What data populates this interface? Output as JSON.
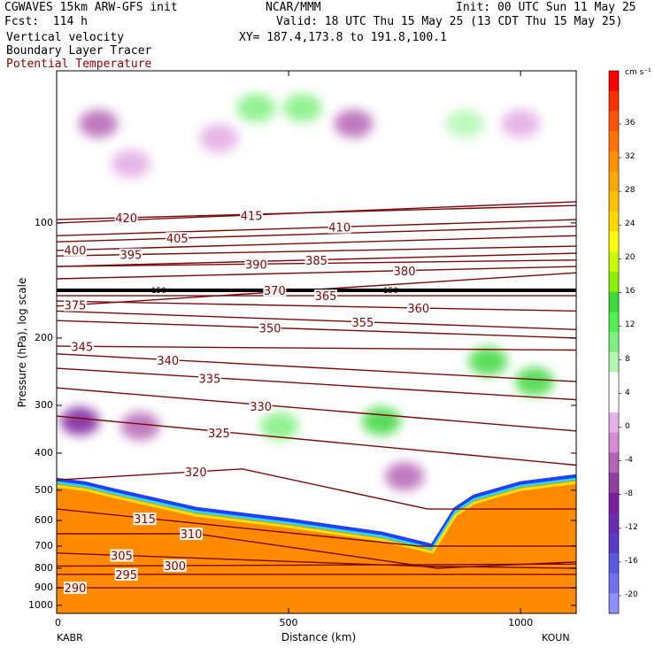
{
  "header": {
    "model": "CGWAVES 15km ARW-GFS init",
    "org": "NCAR/MMM",
    "init": "Init: 00 UTC Sun 11 May 25",
    "fcst": "Fcst:  114 h",
    "valid": "Valid: 18 UTC Thu 15 May 25 (13 CDT Thu 15 May 25)",
    "field1": "Vertical velocity",
    "field2": "Boundary Layer Tracer",
    "field3": "Potential Temperature",
    "xy": "XY= 187.4,173.8 to 191.8,100.1"
  },
  "colors": {
    "theta": "#7a0a0a",
    "tropopause": "#000000",
    "text_red": "#8b0000"
  },
  "chart_data": {
    "type": "heatmap",
    "xlabel": "Distance (km)",
    "ylabel": "Pressure (hPa), log scale",
    "x_ticks": [
      {
        "value": 0,
        "label": "0"
      },
      {
        "value": 500,
        "label": "500"
      },
      {
        "value": 1000,
        "label": "1000"
      }
    ],
    "xlim": [
      0,
      1120
    ],
    "y_scale": "log",
    "ylim": [
      1050,
      40
    ],
    "y_ticks": [
      {
        "value": 100,
        "label": "100"
      },
      {
        "value": 200,
        "label": "200"
      },
      {
        "value": 300,
        "label": "300"
      },
      {
        "value": 400,
        "label": "400"
      },
      {
        "value": 500,
        "label": "500"
      },
      {
        "value": 600,
        "label": "600"
      },
      {
        "value": 700,
        "label": "700"
      },
      {
        "value": 800,
        "label": "800"
      },
      {
        "value": 900,
        "label": "900"
      },
      {
        "value": 1000,
        "label": "1000"
      }
    ],
    "stations": {
      "left": "KABR",
      "right": "KOUN"
    },
    "colorbar": {
      "units": "cm s⁻¹",
      "levels": [
        "36",
        "32",
        "28",
        "24",
        "20",
        "16",
        "12",
        "8",
        "4",
        "0",
        "-4",
        "-8",
        "-12",
        "-16",
        "-20"
      ],
      "colors": [
        "#ff0000",
        "#ff3000",
        "#ff5500",
        "#ff7400",
        "#ff9000",
        "#ffa800",
        "#ffc000",
        "#ffd800",
        "#ffff00",
        "#c8ff00",
        "#8af000",
        "#3cd83c",
        "#50f050",
        "#80f080",
        "#b4f8b4",
        "#ffffff",
        "#ffffff",
        "#eab2ea",
        "#d48cd4",
        "#b464b4",
        "#9040a0",
        "#7a1e9a",
        "#6a2ab4",
        "#5a3cc8",
        "#5a5ae0",
        "#7070f0",
        "#9090ff"
      ]
    },
    "theta_contours": [
      {
        "level": 290,
        "label": "290",
        "pts": [
          [
            0,
            900
          ],
          [
            1120,
            900
          ]
        ],
        "label_x": 40
      },
      {
        "level": 295,
        "label": "295",
        "pts": [
          [
            0,
            830
          ],
          [
            1120,
            830
          ]
        ],
        "label_x": 150
      },
      {
        "level": 300,
        "label": "300",
        "pts": [
          [
            0,
            790
          ],
          [
            1120,
            780
          ]
        ],
        "label_x": 255
      },
      {
        "level": 305,
        "label": "305",
        "pts": [
          [
            0,
            730
          ],
          [
            780,
            790
          ],
          [
            1120,
            800
          ]
        ],
        "label_x": 140
      },
      {
        "level": 310,
        "label": "310",
        "pts": [
          [
            0,
            650
          ],
          [
            300,
            650
          ],
          [
            820,
            800
          ],
          [
            1120,
            770
          ]
        ],
        "label_x": 290
      },
      {
        "level": 315,
        "label": "315",
        "pts": [
          [
            0,
            560
          ],
          [
            780,
            700
          ],
          [
            920,
            700
          ],
          [
            1120,
            700
          ]
        ],
        "label_x": 190
      },
      {
        "level": 320,
        "label": "320",
        "pts": [
          [
            0,
            470
          ],
          [
            400,
            440
          ],
          [
            800,
            560
          ],
          [
            1120,
            560
          ]
        ],
        "label_x": 300
      },
      {
        "level": 325,
        "label": "325",
        "pts": [
          [
            0,
            320
          ],
          [
            1120,
            430
          ]
        ],
        "label_x": 350
      },
      {
        "level": 330,
        "label": "330",
        "pts": [
          [
            0,
            270
          ],
          [
            1120,
            350
          ]
        ],
        "label_x": 440
      },
      {
        "level": 335,
        "label": "335",
        "pts": [
          [
            0,
            240
          ],
          [
            1120,
            290
          ]
        ],
        "label_x": 330
      },
      {
        "level": 340,
        "label": "340",
        "pts": [
          [
            0,
            220
          ],
          [
            1120,
            260
          ]
        ],
        "label_x": 240
      },
      {
        "level": 345,
        "label": "345",
        "pts": [
          [
            0,
            210
          ],
          [
            1120,
            215
          ]
        ],
        "label_x": 55
      },
      {
        "level": 350,
        "label": "350",
        "pts": [
          [
            0,
            180
          ],
          [
            1120,
            200
          ]
        ],
        "label_x": 460
      },
      {
        "level": 355,
        "label": "355",
        "pts": [
          [
            0,
            170
          ],
          [
            1120,
            190
          ]
        ],
        "label_x": 660
      },
      {
        "level": 360,
        "label": "360",
        "pts": [
          [
            0,
            160
          ],
          [
            1120,
            170
          ]
        ],
        "label_x": 780
      },
      {
        "level": 365,
        "label": "365",
        "pts": [
          [
            0,
            155
          ],
          [
            1120,
            155
          ]
        ],
        "label_x": 580
      },
      {
        "level": 370,
        "label": "370",
        "pts": [
          [
            0,
            150
          ],
          [
            1120,
            150
          ]
        ],
        "label_x": 470
      },
      {
        "level": 375,
        "label": "375",
        "pts": [
          [
            0,
            165
          ],
          [
            1120,
            135
          ]
        ],
        "label_x": 40
      },
      {
        "level": 380,
        "label": "380",
        "pts": [
          [
            0,
            140
          ],
          [
            1120,
            130
          ]
        ],
        "label_x": 750
      },
      {
        "level": 385,
        "label": "385",
        "pts": [
          [
            0,
            130
          ],
          [
            1120,
            120
          ]
        ],
        "label_x": 560
      },
      {
        "level": 390,
        "label": "390",
        "pts": [
          [
            0,
            130
          ],
          [
            1120,
            125
          ]
        ],
        "label_x": 430
      },
      {
        "level": 395,
        "label": "395",
        "pts": [
          [
            0,
            122
          ],
          [
            1120,
            115
          ]
        ],
        "label_x": 160
      },
      {
        "level": 400,
        "label": "400",
        "pts": [
          [
            0,
            118
          ],
          [
            1120,
            108
          ]
        ],
        "label_x": 40
      },
      {
        "level": 405,
        "label": "405",
        "pts": [
          [
            0,
            112
          ],
          [
            1120,
            102
          ]
        ],
        "label_x": 260
      },
      {
        "level": 410,
        "label": "410",
        "pts": [
          [
            0,
            108
          ],
          [
            1120,
            98
          ]
        ],
        "label_x": 610
      },
      {
        "level": 415,
        "label": "415",
        "pts": [
          [
            0,
            100
          ],
          [
            1120,
            88
          ]
        ],
        "label_x": 420
      },
      {
        "level": 420,
        "label": "420",
        "pts": [
          [
            0,
            98
          ],
          [
            1120,
            90
          ]
        ],
        "label_x": 150
      }
    ],
    "tropopause": {
      "pressure": 150,
      "label": "150"
    },
    "boundary_layer": {
      "top_pts": [
        [
          0,
          470
        ],
        [
          60,
          480
        ],
        [
          120,
          500
        ],
        [
          300,
          560
        ],
        [
          500,
          600
        ],
        [
          700,
          650
        ],
        [
          810,
          700
        ],
        [
          860,
          560
        ],
        [
          900,
          520
        ],
        [
          1000,
          480
        ],
        [
          1120,
          460
        ]
      ],
      "color": "#ff8a00"
    },
    "w_blobs": [
      {
        "x": 90,
        "p": 55,
        "w": -8
      },
      {
        "x": 160,
        "p": 70,
        "w": -4
      },
      {
        "x": 350,
        "p": 60,
        "w": -4
      },
      {
        "x": 430,
        "p": 50,
        "w": 8
      },
      {
        "x": 530,
        "p": 50,
        "w": 8
      },
      {
        "x": 640,
        "p": 55,
        "w": -8
      },
      {
        "x": 880,
        "p": 55,
        "w": 4
      },
      {
        "x": 1000,
        "p": 55,
        "w": -4
      },
      {
        "x": 180,
        "p": 340,
        "w": -8
      },
      {
        "x": 480,
        "p": 340,
        "w": 8
      },
      {
        "x": 700,
        "p": 330,
        "w": 12
      },
      {
        "x": 930,
        "p": 230,
        "w": 12
      },
      {
        "x": 1030,
        "p": 260,
        "w": 12
      },
      {
        "x": 50,
        "p": 330,
        "w": -12
      },
      {
        "x": 750,
        "p": 460,
        "w": -8
      }
    ]
  }
}
